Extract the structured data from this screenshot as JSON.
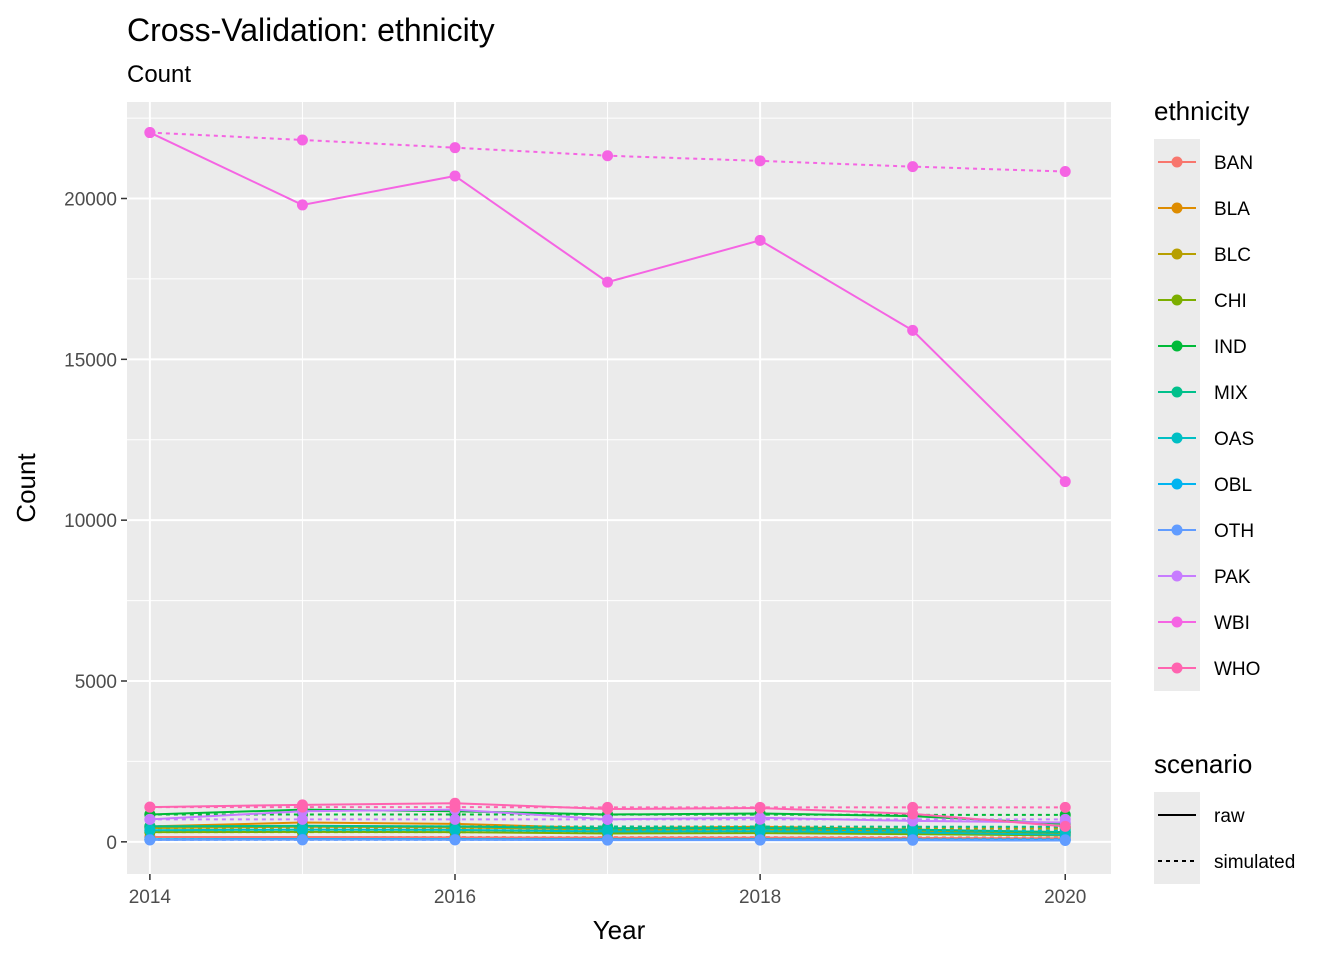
{
  "chart_data": {
    "type": "line",
    "title": "Cross-Validation: ethnicity",
    "subtitle": "Count",
    "xlabel": "Year",
    "ylabel": "Count",
    "x": [
      2014,
      2015,
      2016,
      2017,
      2018,
      2019,
      2020
    ],
    "x_ticks": [
      "2014",
      "2016",
      "2018",
      "2020"
    ],
    "xlim": [
      2013.85,
      2020.3
    ],
    "ylim": [
      -1000,
      23000
    ],
    "y_ticks": [
      "0",
      "5000",
      "10000",
      "15000",
      "20000"
    ],
    "grid": true,
    "legend_position": "right",
    "color_legend": {
      "title": "ethnicity",
      "entries": [
        {
          "label": "BAN",
          "color": "#F8766D"
        },
        {
          "label": "BLA",
          "color": "#DE8C00"
        },
        {
          "label": "BLC",
          "color": "#B79F00"
        },
        {
          "label": "CHI",
          "color": "#7CAE00"
        },
        {
          "label": "IND",
          "color": "#00BA38"
        },
        {
          "label": "MIX",
          "color": "#00C08B"
        },
        {
          "label": "OAS",
          "color": "#00BFC4"
        },
        {
          "label": "OBL",
          "color": "#00B4F0"
        },
        {
          "label": "OTH",
          "color": "#619CFF"
        },
        {
          "label": "PAK",
          "color": "#C77CFF"
        },
        {
          "label": "WBI",
          "color": "#F564E3"
        },
        {
          "label": "WHO",
          "color": "#FF64B0"
        }
      ]
    },
    "linetype_legend": {
      "title": "scenario",
      "entries": [
        {
          "label": "raw",
          "dash": "solid"
        },
        {
          "label": "simulated",
          "dash": "dotted"
        }
      ]
    },
    "series": [
      {
        "ethnicity": "BAN",
        "scenario": "raw",
        "values": [
          150,
          150,
          140,
          130,
          130,
          120,
          110
        ]
      },
      {
        "ethnicity": "BAN",
        "scenario": "simulated",
        "values": [
          150,
          150,
          150,
          145,
          145,
          140,
          140
        ]
      },
      {
        "ethnicity": "BLA",
        "scenario": "raw",
        "values": [
          480,
          600,
          560,
          420,
          470,
          380,
          300
        ]
      },
      {
        "ethnicity": "BLA",
        "scenario": "simulated",
        "values": [
          480,
          480,
          475,
          470,
          465,
          460,
          455
        ]
      },
      {
        "ethnicity": "BLC",
        "scenario": "raw",
        "values": [
          430,
          470,
          450,
          380,
          390,
          330,
          260
        ]
      },
      {
        "ethnicity": "BLC",
        "scenario": "simulated",
        "values": [
          430,
          430,
          425,
          420,
          420,
          415,
          410
        ]
      },
      {
        "ethnicity": "CHI",
        "scenario": "raw",
        "values": [
          300,
          310,
          300,
          260,
          270,
          240,
          200
        ]
      },
      {
        "ethnicity": "CHI",
        "scenario": "simulated",
        "values": [
          300,
          300,
          300,
          295,
          295,
          290,
          290
        ]
      },
      {
        "ethnicity": "IND",
        "scenario": "raw",
        "values": [
          850,
          1000,
          950,
          850,
          880,
          800,
          560
        ]
      },
      {
        "ethnicity": "IND",
        "scenario": "simulated",
        "values": [
          850,
          850,
          850,
          845,
          845,
          840,
          840
        ]
      },
      {
        "ethnicity": "MIX",
        "scenario": "raw",
        "values": [
          480,
          500,
          480,
          420,
          430,
          380,
          300
        ]
      },
      {
        "ethnicity": "MIX",
        "scenario": "simulated",
        "values": [
          480,
          480,
          480,
          475,
          475,
          470,
          470
        ]
      },
      {
        "ethnicity": "OAS",
        "scenario": "raw",
        "values": [
          360,
          380,
          370,
          320,
          330,
          290,
          220
        ]
      },
      {
        "ethnicity": "OAS",
        "scenario": "simulated",
        "values": [
          360,
          360,
          360,
          355,
          355,
          350,
          350
        ]
      },
      {
        "ethnicity": "OBL",
        "scenario": "raw",
        "values": [
          80,
          90,
          85,
          75,
          75,
          70,
          60
        ]
      },
      {
        "ethnicity": "OBL",
        "scenario": "simulated",
        "values": [
          80,
          80,
          80,
          80,
          80,
          80,
          80
        ]
      },
      {
        "ethnicity": "OTH",
        "scenario": "raw",
        "values": [
          60,
          70,
          65,
          55,
          55,
          50,
          40
        ]
      },
      {
        "ethnicity": "OTH",
        "scenario": "simulated",
        "values": [
          60,
          60,
          60,
          60,
          60,
          60,
          60
        ]
      },
      {
        "ethnicity": "PAK",
        "scenario": "raw",
        "values": [
          700,
          950,
          1000,
          700,
          750,
          650,
          600
        ]
      },
      {
        "ethnicity": "PAK",
        "scenario": "simulated",
        "values": [
          700,
          700,
          700,
          700,
          700,
          700,
          700
        ]
      },
      {
        "ethnicity": "WBI",
        "scenario": "raw",
        "values": [
          22050,
          19800,
          20700,
          17400,
          18700,
          15900,
          11200
        ]
      },
      {
        "ethnicity": "WBI",
        "scenario": "simulated",
        "values": [
          22050,
          21820,
          21580,
          21330,
          21170,
          20990,
          20840
        ]
      },
      {
        "ethnicity": "WHO",
        "scenario": "raw",
        "values": [
          1080,
          1150,
          1200,
          1020,
          1050,
          870,
          480
        ]
      },
      {
        "ethnicity": "WHO",
        "scenario": "simulated",
        "values": [
          1080,
          1080,
          1080,
          1070,
          1070,
          1070,
          1070
        ]
      }
    ]
  }
}
